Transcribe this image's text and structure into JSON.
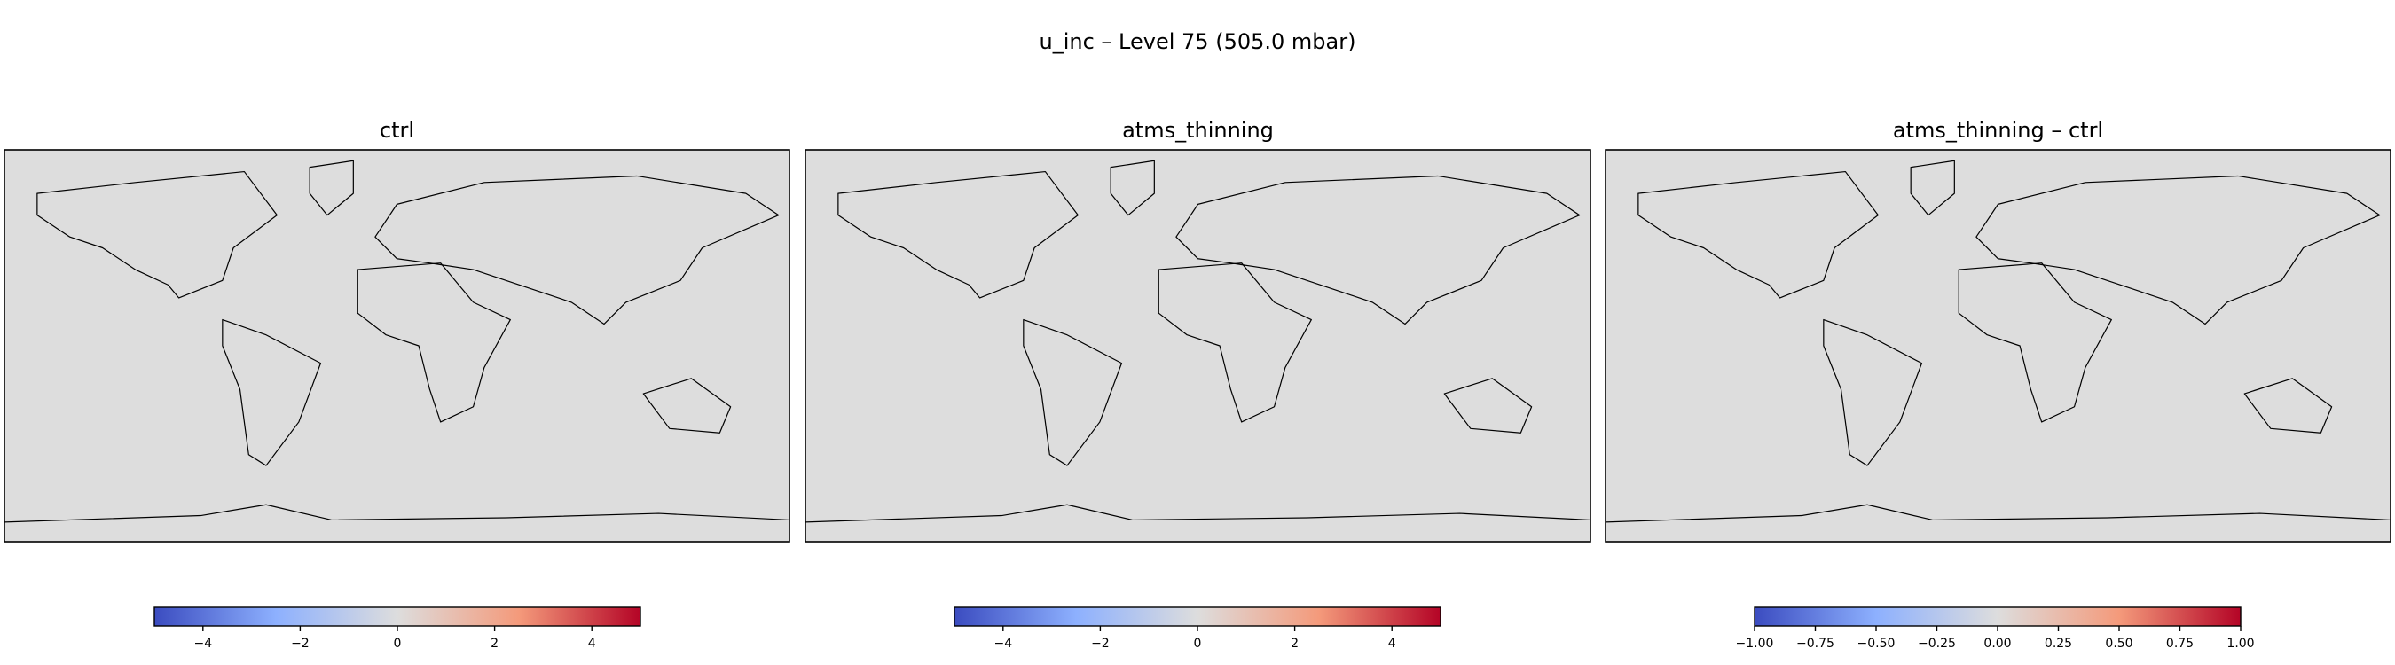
{
  "title": "u_inc – Level 75 (505.0 mbar)",
  "chart_data": [
    {
      "type": "map",
      "title": "ctrl",
      "colormap": [
        "#3b4cc0",
        "#8db0fe",
        "#dddddd",
        "#f49a7b",
        "#b40426"
      ],
      "clim": [
        -5,
        5
      ],
      "cticks": [
        {
          "value": -4,
          "label": "−4"
        },
        {
          "value": -2,
          "label": "−2"
        },
        0,
        2,
        4
      ]
    },
    {
      "type": "map",
      "title": "atms_thinning",
      "colormap": [
        "#3b4cc0",
        "#8db0fe",
        "#dddddd",
        "#f49a7b",
        "#b40426"
      ],
      "clim": [
        -5,
        5
      ],
      "cticks": [
        {
          "value": -4,
          "label": "−4"
        },
        {
          "value": -2,
          "label": "−2"
        },
        0,
        2,
        4
      ]
    },
    {
      "type": "map",
      "title": "atms_thinning – ctrl",
      "colormap": [
        "#3b4cc0",
        "#8db0fe",
        "#dddddd",
        "#f49a7b",
        "#b40426"
      ],
      "clim": [
        -1,
        1
      ],
      "cticks": [
        {
          "value": -1,
          "label": "−1.00"
        },
        {
          "value": -0.75,
          "label": "−0.75"
        },
        {
          "value": -0.5,
          "label": "−0.50"
        },
        {
          "value": -0.25,
          "label": "−0.25"
        },
        {
          "value": 0,
          "label": "0.00"
        },
        {
          "value": 0.25,
          "label": "0.25"
        },
        {
          "value": 0.5,
          "label": "0.50"
        },
        {
          "value": 0.75,
          "label": "0.75"
        },
        {
          "value": 1,
          "label": "1.00"
        }
      ]
    }
  ]
}
